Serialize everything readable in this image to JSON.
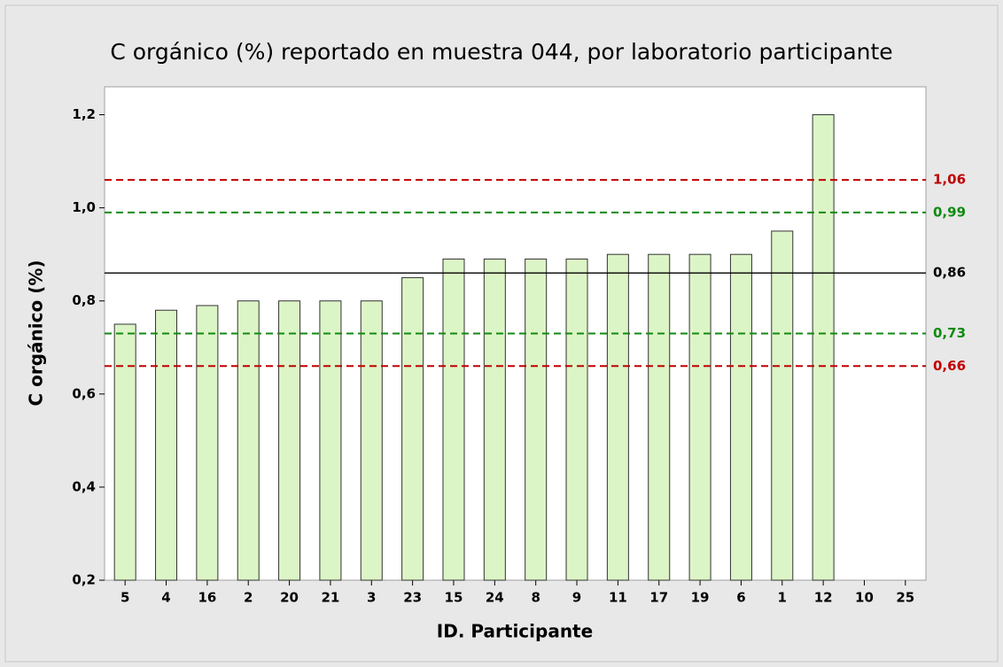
{
  "chart_data": {
    "type": "bar",
    "title": "C orgánico (%) reportado en muestra 044, por laboratorio participante",
    "x_label": "ID. Participante",
    "y_label": "C orgánico (%)",
    "categories": [
      "5",
      "4",
      "16",
      "2",
      "20",
      "21",
      "3",
      "23",
      "15",
      "24",
      "8",
      "9",
      "11",
      "17",
      "19",
      "6",
      "1",
      "12",
      "10",
      "25"
    ],
    "values": [
      0.75,
      0.78,
      0.79,
      0.8,
      0.8,
      0.8,
      0.8,
      0.85,
      0.89,
      0.89,
      0.89,
      0.89,
      0.9,
      0.9,
      0.9,
      0.9,
      0.95,
      1.2,
      null,
      null
    ],
    "color": "#dcf5c6",
    "ylim": [
      0.2,
      1.26
    ],
    "yticks": [
      {
        "value": 0.2,
        "label": "0,2"
      },
      {
        "value": 0.4,
        "label": "0,4"
      },
      {
        "value": 0.6,
        "label": "0,6"
      },
      {
        "value": 0.8,
        "label": "0,8"
      },
      {
        "value": 1.0,
        "label": "1,0"
      },
      {
        "value": 1.2,
        "label": "1,2"
      }
    ],
    "reference_lines": [
      {
        "value": 1.06,
        "label": "1,06",
        "color": "#c00000",
        "style": "dashed"
      },
      {
        "value": 0.99,
        "label": "0,99",
        "color": "#128a12",
        "style": "dashed"
      },
      {
        "value": 0.86,
        "label": "0,86",
        "color": "#000000",
        "style": "solid"
      },
      {
        "value": 0.73,
        "label": "0,73",
        "color": "#128a12",
        "style": "dashed"
      },
      {
        "value": 0.66,
        "label": "0,66",
        "color": "#c00000",
        "style": "dashed"
      }
    ]
  }
}
